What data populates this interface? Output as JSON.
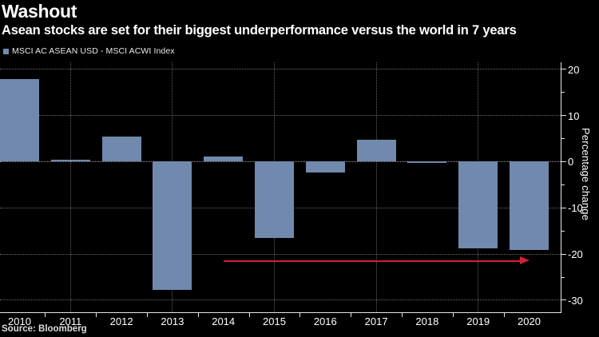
{
  "header": {
    "title": "Washout",
    "subtitle": "Asean stocks are set for their biggest underperformance versus the world in 7 years"
  },
  "legend": {
    "label": "MSCI AC ASEAN USD - MSCI ACWI Index",
    "swatch_color": "#7189ad"
  },
  "source": "Source: Bloomberg",
  "chart_data": {
    "type": "bar",
    "title": "Washout",
    "subtitle": "Asean stocks are set for their biggest underperformance versus the world in 7 years",
    "series_name": "MSCI AC ASEAN USD - MSCI ACWI Index",
    "categories": [
      "2010",
      "2011",
      "2012",
      "2013",
      "2014",
      "2015",
      "2016",
      "2017",
      "2018",
      "2019",
      "2020"
    ],
    "values": [
      17.8,
      0.4,
      5.5,
      -27.7,
      1.1,
      -16.6,
      -2.4,
      4.7,
      -0.2,
      -18.7,
      -19.2
    ],
    "xlabel": "",
    "ylabel": "Percentage change",
    "ylim": [
      -32.6,
      21.5
    ],
    "yticks_major": [
      20,
      10,
      0,
      -10,
      -20,
      -30
    ],
    "yticks_minor": [
      15,
      5,
      -5,
      -15,
      -25
    ],
    "grid_y_values": [
      20,
      10,
      0,
      -10,
      -20,
      -30
    ],
    "grid_x_categories": [
      "2011",
      "2013",
      "2015",
      "2017",
      "2019"
    ],
    "legend_position": "top-left",
    "grid": true,
    "background_color": "#000000",
    "bar_color": "#7189ad",
    "axis_color": "#e6e6e6",
    "annotation_arrow": {
      "from_category": "2014",
      "to_category": "2020",
      "value": -21.5,
      "color": "#d2203c"
    }
  }
}
